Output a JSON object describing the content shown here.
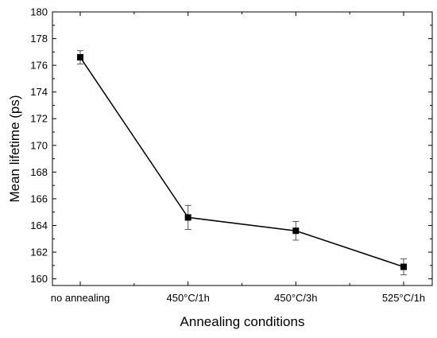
{
  "chart_data": {
    "type": "line",
    "title": "",
    "xlabel": "Annealing conditions",
    "ylabel": "Mean lifetime (ps)",
    "categories": [
      "no annealing",
      "450°C/1h",
      "450°C/3h",
      "525°C/1h"
    ],
    "series": [
      {
        "values": [
          176.6,
          164.6,
          163.6,
          160.9
        ],
        "errors": [
          0.5,
          0.9,
          0.7,
          0.6
        ],
        "marker": "square",
        "color": "#000000"
      }
    ],
    "ylim": [
      159.5,
      180
    ],
    "yticks": [
      160,
      162,
      164,
      166,
      168,
      170,
      172,
      174,
      176,
      178,
      180
    ],
    "grid": false,
    "legend": "none"
  }
}
